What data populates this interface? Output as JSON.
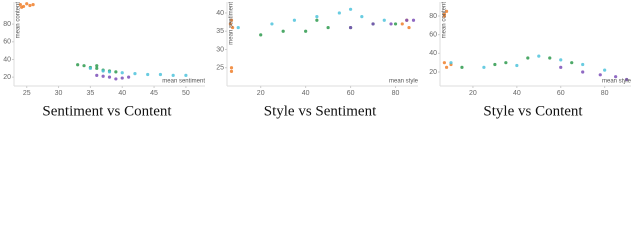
{
  "chart_data": [
    {
      "type": "scatter",
      "title": "Sentiment vs Content",
      "x_label": "mean sentiment",
      "y_label": "mean content",
      "xlim": [
        23,
        53
      ],
      "ylim": [
        10,
        105
      ],
      "xticks": [
        25,
        30,
        35,
        40,
        45,
        50
      ],
      "yticks": [
        20,
        40,
        60,
        80
      ],
      "series": [
        {
          "color": "#f07f2a",
          "x": [
            24,
            24.5,
            25,
            25.5,
            24.2,
            26
          ],
          "values": [
            102,
            100,
            103,
            101,
            99,
            102
          ]
        },
        {
          "color": "#2e9a4e",
          "x": [
            33,
            35,
            36,
            37,
            38,
            34,
            39,
            36
          ],
          "values": [
            34,
            31,
            30,
            28,
            27,
            33,
            26,
            33
          ]
        },
        {
          "color": "#4fc3dc",
          "x": [
            35,
            38,
            40,
            42,
            44,
            46,
            48,
            37,
            50
          ],
          "values": [
            30,
            26,
            25,
            24,
            23,
            23,
            22,
            27,
            22
          ]
        },
        {
          "color": "#7b4fb8",
          "x": [
            36,
            38,
            40,
            37,
            39,
            41
          ],
          "values": [
            22,
            20,
            19,
            21,
            18,
            20
          ]
        }
      ]
    },
    {
      "type": "scatter",
      "title": "Style vs Sentiment",
      "x_label": "mean style",
      "y_label": "mean sentiment",
      "xlim": [
        5,
        90
      ],
      "ylim": [
        20,
        43
      ],
      "xticks": [
        20,
        40,
        60,
        80
      ],
      "yticks": [
        25,
        30,
        35,
        40
      ],
      "series": [
        {
          "color": "#f07f2a",
          "x": [
            7,
            7,
            6.5,
            7,
            7.5,
            85,
            83,
            86
          ],
          "values": [
            24,
            25,
            37,
            38,
            36,
            38,
            37,
            36
          ]
        },
        {
          "color": "#2e9a4e",
          "x": [
            20,
            30,
            40,
            50,
            60,
            70,
            80,
            45
          ],
          "values": [
            34,
            35,
            35,
            36,
            36,
            37,
            37,
            38
          ]
        },
        {
          "color": "#4fc3dc",
          "x": [
            10,
            25,
            35,
            45,
            55,
            60,
            65,
            75
          ],
          "values": [
            36,
            37,
            38,
            39,
            40,
            41,
            39,
            38
          ]
        },
        {
          "color": "#7b4fb8",
          "x": [
            60,
            70,
            78,
            85,
            88
          ],
          "values": [
            36,
            37,
            37,
            38,
            38
          ]
        }
      ]
    },
    {
      "type": "scatter",
      "title": "Style vs Content",
      "x_label": "mean style",
      "y_label": "mean content",
      "xlim": [
        5,
        92
      ],
      "ylim": [
        5,
        95
      ],
      "xticks": [
        20,
        40,
        60,
        80
      ],
      "yticks": [
        20,
        40,
        60,
        80
      ],
      "series": [
        {
          "color": "#f07f2a",
          "x": [
            7,
            7,
            8,
            7,
            8,
            10
          ],
          "values": [
            80,
            82,
            85,
            30,
            25,
            28
          ]
        },
        {
          "color": "#2e9a4e",
          "x": [
            15,
            30,
            45,
            55,
            65,
            35
          ],
          "values": [
            25,
            28,
            35,
            35,
            30,
            30
          ]
        },
        {
          "color": "#4fc3dc",
          "x": [
            10,
            25,
            40,
            50,
            60,
            70,
            80
          ],
          "values": [
            30,
            25,
            27,
            37,
            33,
            28,
            22
          ]
        },
        {
          "color": "#7b4fb8",
          "x": [
            60,
            70,
            78,
            85,
            90
          ],
          "values": [
            25,
            20,
            17,
            15,
            12
          ]
        }
      ]
    }
  ]
}
